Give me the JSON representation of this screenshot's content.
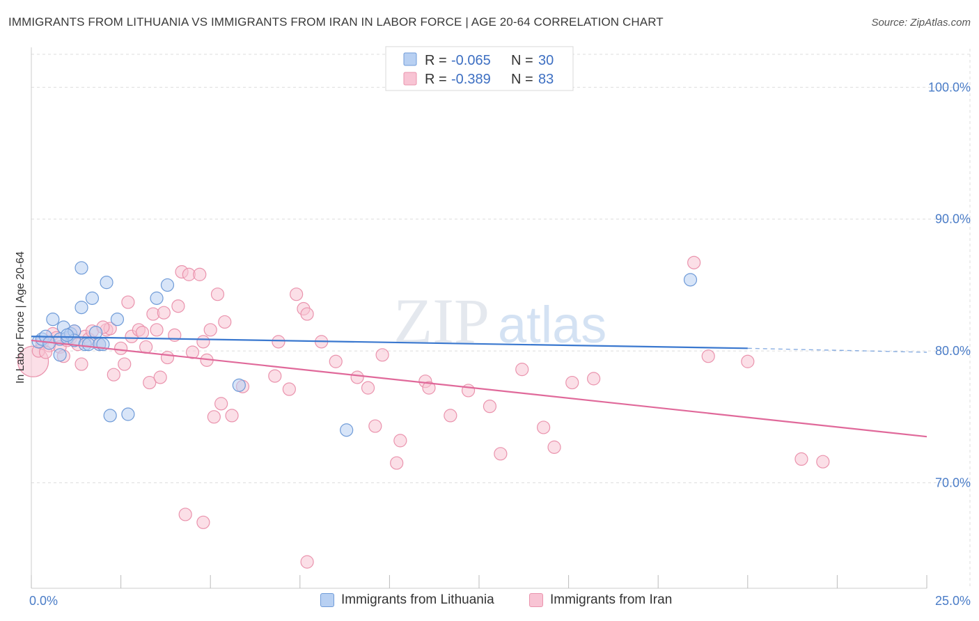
{
  "title": "IMMIGRANTS FROM LITHUANIA VS IMMIGRANTS FROM IRAN IN LABOR FORCE | AGE 20-64 CORRELATION CHART",
  "source": "Source: ZipAtlas.com",
  "watermark": {
    "zip": "ZIP",
    "atlas": "atlas"
  },
  "colors": {
    "blue_fill": "#b8d0f2",
    "blue_stroke": "#6f9bd8",
    "blue_line": "#3a78cf",
    "pink_fill": "#f8c4d4",
    "pink_stroke": "#ea93ad",
    "pink_line": "#e0699a",
    "tick": "#4a7cc7",
    "grid": "#dddddd"
  },
  "legend": {
    "rows": [
      {
        "r_label": "R =",
        "r_value": "-0.065",
        "n_label": "N =",
        "n_value": "30",
        "color": "blue"
      },
      {
        "r_label": "R =",
        "r_value": "-0.389",
        "n_label": "N =",
        "n_value": "83",
        "color": "pink"
      }
    ]
  },
  "chart_data": {
    "type": "scatter",
    "title": "IMMIGRANTS FROM LITHUANIA VS IMMIGRANTS FROM IRAN IN LABOR FORCE | AGE 20-64 CORRELATION CHART",
    "xlabel": "",
    "ylabel": "In Labor Force | Age 20-64",
    "xlim": [
      0,
      25
    ],
    "ylim": [
      62,
      102.5
    ],
    "x_ticks": [
      {
        "value": 0,
        "label": "0.0%"
      },
      {
        "value": 25,
        "label": "25.0%"
      }
    ],
    "y_ticks": [
      {
        "value": 70,
        "label": "70.0%"
      },
      {
        "value": 80,
        "label": "80.0%"
      },
      {
        "value": 90,
        "label": "90.0%"
      },
      {
        "value": 100,
        "label": "100.0%"
      }
    ],
    "grid": true,
    "legend_position": "top-center",
    "series": [
      {
        "name": "Immigrants from Lithuania",
        "color": "blue",
        "trend": {
          "x0": 0,
          "y0": 81.1,
          "x1": 20,
          "y1": 80.2,
          "dash_to_x": 25,
          "dash_to_y": 79.9
        },
        "points": [
          [
            0.2,
            80.7
          ],
          [
            0.3,
            80.9
          ],
          [
            0.4,
            81.1
          ],
          [
            0.5,
            80.6
          ],
          [
            0.6,
            82.4
          ],
          [
            0.8,
            80.9
          ],
          [
            0.8,
            79.7
          ],
          [
            0.9,
            81.8
          ],
          [
            1.0,
            81.0
          ],
          [
            1.1,
            81.3
          ],
          [
            1.2,
            81.5
          ],
          [
            1.2,
            80.8
          ],
          [
            1.4,
            83.3
          ],
          [
            1.4,
            86.3
          ],
          [
            1.5,
            80.5
          ],
          [
            1.6,
            80.5
          ],
          [
            1.7,
            84.0
          ],
          [
            1.8,
            81.4
          ],
          [
            1.9,
            80.5
          ],
          [
            2.0,
            80.5
          ],
          [
            2.1,
            85.2
          ],
          [
            2.2,
            75.1
          ],
          [
            2.4,
            82.4
          ],
          [
            2.7,
            75.2
          ],
          [
            3.5,
            84.0
          ],
          [
            3.8,
            85.0
          ],
          [
            5.8,
            77.4
          ],
          [
            8.8,
            74.0
          ],
          [
            18.4,
            85.4
          ],
          [
            1.0,
            81.2
          ]
        ]
      },
      {
        "name": "Immigrants from Iran",
        "color": "pink",
        "trend": {
          "x0": 0,
          "y0": 80.8,
          "x1": 25,
          "y1": 73.5
        },
        "points": [
          [
            0.05,
            79.2
          ],
          [
            0.2,
            80.0
          ],
          [
            0.3,
            80.6
          ],
          [
            0.5,
            80.4
          ],
          [
            0.6,
            81.3
          ],
          [
            0.7,
            81.0
          ],
          [
            0.8,
            80.3
          ],
          [
            0.9,
            79.6
          ],
          [
            1.0,
            80.8
          ],
          [
            1.1,
            81.0
          ],
          [
            1.2,
            81.5
          ],
          [
            1.4,
            79.0
          ],
          [
            1.5,
            81.1
          ],
          [
            1.6,
            80.9
          ],
          [
            1.7,
            81.5
          ],
          [
            1.9,
            80.5
          ],
          [
            2.1,
            81.6
          ],
          [
            2.2,
            81.7
          ],
          [
            2.3,
            78.2
          ],
          [
            2.5,
            80.2
          ],
          [
            2.6,
            79.0
          ],
          [
            2.7,
            83.7
          ],
          [
            2.8,
            81.1
          ],
          [
            3.0,
            81.6
          ],
          [
            3.1,
            81.4
          ],
          [
            3.2,
            80.3
          ],
          [
            3.3,
            77.6
          ],
          [
            3.4,
            82.8
          ],
          [
            3.5,
            81.6
          ],
          [
            3.6,
            78.0
          ],
          [
            3.7,
            82.9
          ],
          [
            3.8,
            79.5
          ],
          [
            4.0,
            81.2
          ],
          [
            4.1,
            83.4
          ],
          [
            4.2,
            86.0
          ],
          [
            4.3,
            67.6
          ],
          [
            4.4,
            85.8
          ],
          [
            4.5,
            79.9
          ],
          [
            4.7,
            85.8
          ],
          [
            4.8,
            80.7
          ],
          [
            4.8,
            67.0
          ],
          [
            4.9,
            79.3
          ],
          [
            5.0,
            81.6
          ],
          [
            5.1,
            75.0
          ],
          [
            5.2,
            84.3
          ],
          [
            5.3,
            76.0
          ],
          [
            5.4,
            82.2
          ],
          [
            5.6,
            75.1
          ],
          [
            5.9,
            77.3
          ],
          [
            6.8,
            78.1
          ],
          [
            6.9,
            80.7
          ],
          [
            7.2,
            77.1
          ],
          [
            7.4,
            84.3
          ],
          [
            7.6,
            83.2
          ],
          [
            7.7,
            82.8
          ],
          [
            7.7,
            64.0
          ],
          [
            8.1,
            80.7
          ],
          [
            8.5,
            79.2
          ],
          [
            9.1,
            78.0
          ],
          [
            9.4,
            77.2
          ],
          [
            9.6,
            74.3
          ],
          [
            9.8,
            79.7
          ],
          [
            10.2,
            71.5
          ],
          [
            10.3,
            73.2
          ],
          [
            11.0,
            77.7
          ],
          [
            11.1,
            77.2
          ],
          [
            11.7,
            75.1
          ],
          [
            12.2,
            77.0
          ],
          [
            12.8,
            75.8
          ],
          [
            13.1,
            72.2
          ],
          [
            13.7,
            78.6
          ],
          [
            14.3,
            74.2
          ],
          [
            14.6,
            72.7
          ],
          [
            15.1,
            77.6
          ],
          [
            15.7,
            77.9
          ],
          [
            18.5,
            86.7
          ],
          [
            18.9,
            79.6
          ],
          [
            20.0,
            79.2
          ],
          [
            21.5,
            71.8
          ],
          [
            22.1,
            71.6
          ],
          [
            2.0,
            81.8
          ],
          [
            0.4,
            79.9
          ],
          [
            1.3,
            80.5
          ]
        ]
      }
    ]
  }
}
